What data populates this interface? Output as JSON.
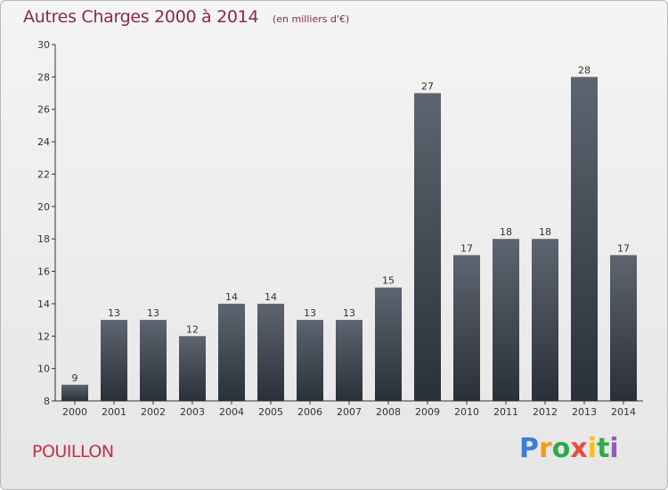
{
  "header": {
    "title": "Autres Charges 2000 à 2014",
    "subtitle": "(en milliers d'€)"
  },
  "commune": "POUILLON",
  "logo": {
    "letters": [
      "P",
      "r",
      "o",
      "x",
      "i",
      "t",
      "i"
    ],
    "colors": [
      "#3a7fd6",
      "#f39c12",
      "#2eaa4a",
      "#e74c3c",
      "#f1c40f",
      "#2eaa4a",
      "#9b59b6"
    ]
  },
  "chart_data": {
    "type": "bar",
    "categories": [
      "2000",
      "2001",
      "2002",
      "2003",
      "2004",
      "2005",
      "2006",
      "2007",
      "2008",
      "2009",
      "2010",
      "2011",
      "2012",
      "2013",
      "2014"
    ],
    "values": [
      9,
      13,
      13,
      12,
      14,
      14,
      13,
      13,
      15,
      27,
      17,
      18,
      18,
      28,
      17
    ],
    "ylim": [
      8,
      30
    ],
    "yticks": [
      8,
      10,
      12,
      14,
      16,
      18,
      20,
      22,
      24,
      26,
      28,
      30
    ],
    "grid": false,
    "bar_color_top": "#5d6570",
    "bar_color_bottom": "#2a3038"
  }
}
